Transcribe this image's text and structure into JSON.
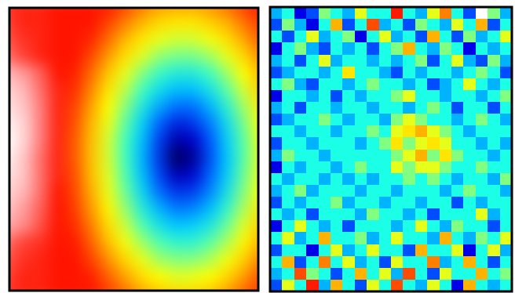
{
  "chart_data": [
    {
      "type": "heatmap",
      "tick_labels": false,
      "zlim": [
        0,
        1
      ],
      "cells": [
        [
          0.86,
          0.85,
          0.85,
          0.84,
          0.84,
          0.84,
          0.83,
          0.77,
          0.71,
          0.67,
          0.66,
          0.66,
          0.68,
          0.72,
          0.78,
          0.84
        ],
        [
          0.87,
          0.85,
          0.85,
          0.84,
          0.84,
          0.84,
          0.77,
          0.7,
          0.64,
          0.6,
          0.58,
          0.58,
          0.61,
          0.65,
          0.71,
          0.79
        ],
        [
          0.88,
          0.86,
          0.85,
          0.84,
          0.84,
          0.81,
          0.72,
          0.64,
          0.58,
          0.53,
          0.51,
          0.51,
          0.54,
          0.59,
          0.66,
          0.74
        ],
        [
          0.9,
          0.87,
          0.85,
          0.84,
          0.84,
          0.76,
          0.67,
          0.59,
          0.52,
          0.46,
          0.44,
          0.44,
          0.47,
          0.53,
          0.6,
          0.69
        ],
        [
          0.95,
          0.93,
          0.89,
          0.84,
          0.82,
          0.72,
          0.62,
          0.53,
          0.45,
          0.39,
          0.36,
          0.36,
          0.4,
          0.47,
          0.55,
          0.64
        ],
        [
          0.97,
          0.95,
          0.9,
          0.85,
          0.8,
          0.69,
          0.58,
          0.49,
          0.4,
          0.33,
          0.29,
          0.29,
          0.34,
          0.42,
          0.51,
          0.61
        ],
        [
          0.98,
          0.96,
          0.91,
          0.85,
          0.77,
          0.66,
          0.55,
          0.45,
          0.35,
          0.27,
          0.22,
          0.22,
          0.28,
          0.37,
          0.47,
          0.57
        ],
        [
          0.99,
          0.97,
          0.91,
          0.85,
          0.75,
          0.64,
          0.53,
          0.42,
          0.31,
          0.21,
          0.14,
          0.16,
          0.23,
          0.33,
          0.44,
          0.55
        ],
        [
          1.0,
          0.97,
          0.91,
          0.85,
          0.74,
          0.63,
          0.51,
          0.4,
          0.29,
          0.17,
          0.08,
          0.1,
          0.2,
          0.31,
          0.42,
          0.54
        ],
        [
          0.99,
          0.96,
          0.9,
          0.85,
          0.74,
          0.63,
          0.51,
          0.4,
          0.28,
          0.16,
          0.04,
          0.07,
          0.19,
          0.3,
          0.42,
          0.53
        ],
        [
          0.98,
          0.96,
          0.9,
          0.85,
          0.75,
          0.63,
          0.52,
          0.41,
          0.29,
          0.18,
          0.09,
          0.11,
          0.21,
          0.31,
          0.43,
          0.54
        ],
        [
          0.97,
          0.95,
          0.9,
          0.84,
          0.76,
          0.65,
          0.53,
          0.43,
          0.32,
          0.22,
          0.16,
          0.17,
          0.24,
          0.34,
          0.45,
          0.55
        ],
        [
          0.96,
          0.93,
          0.89,
          0.84,
          0.78,
          0.67,
          0.56,
          0.46,
          0.36,
          0.28,
          0.23,
          0.24,
          0.29,
          0.38,
          0.48,
          0.58
        ],
        [
          0.94,
          0.92,
          0.88,
          0.84,
          0.8,
          0.7,
          0.59,
          0.5,
          0.41,
          0.34,
          0.3,
          0.31,
          0.35,
          0.43,
          0.52,
          0.61
        ],
        [
          0.9,
          0.87,
          0.86,
          0.84,
          0.83,
          0.73,
          0.63,
          0.54,
          0.47,
          0.41,
          0.38,
          0.38,
          0.42,
          0.48,
          0.56,
          0.65
        ],
        [
          0.88,
          0.86,
          0.85,
          0.84,
          0.84,
          0.77,
          0.68,
          0.6,
          0.53,
          0.47,
          0.45,
          0.45,
          0.48,
          0.54,
          0.61,
          0.7
        ],
        [
          0.87,
          0.85,
          0.85,
          0.84,
          0.84,
          0.82,
          0.73,
          0.66,
          0.59,
          0.55,
          0.52,
          0.53,
          0.55,
          0.6,
          0.67,
          0.75
        ],
        [
          0.86,
          0.85,
          0.85,
          0.84,
          0.84,
          0.84,
          0.78,
          0.72,
          0.66,
          0.62,
          0.6,
          0.6,
          0.62,
          0.67,
          0.73,
          0.8
        ]
      ]
    },
    {
      "type": "heatmap",
      "tick_labels": false,
      "zlim": [
        0,
        1
      ],
      "cells": [
        [
          0.3,
          0.4,
          0.1,
          0.2,
          0.5,
          0.4,
          0.3,
          0.6,
          0.4,
          0.4,
          0.85,
          0.4,
          0.3,
          0.6,
          0.75,
          0.4,
          0.2,
          1.0,
          0.5,
          0.3
        ],
        [
          0.2,
          0.5,
          0.3,
          0.1,
          0.4,
          0.7,
          0.2,
          0.4,
          0.8,
          0.3,
          0.4,
          0.2,
          0.5,
          0.4,
          0.3,
          0.6,
          0.4,
          0.7,
          0.2,
          0.4
        ],
        [
          0.4,
          0.2,
          0.4,
          0.6,
          0.3,
          0.4,
          0.5,
          0.1,
          0.4,
          0.6,
          0.3,
          0.4,
          0.2,
          0.7,
          0.4,
          0.2,
          0.5,
          0.3,
          0.4,
          0.6
        ],
        [
          0.1,
          0.4,
          0.5,
          0.3,
          0.2,
          0.4,
          0.3,
          0.4,
          0.2,
          0.4,
          0.5,
          0.7,
          0.4,
          0.3,
          0.5,
          0.4,
          0.1,
          0.4,
          0.3,
          0.4
        ],
        [
          0.3,
          0.4,
          0.2,
          0.4,
          0.6,
          0.3,
          0.4,
          0.4,
          0.3,
          0.4,
          0.3,
          0.4,
          0.5,
          0.2,
          0.4,
          0.6,
          0.3,
          0.2,
          0.5,
          0.3
        ],
        [
          0.2,
          0.3,
          0.4,
          0.4,
          0.3,
          0.4,
          0.65,
          0.4,
          0.4,
          0.3,
          0.2,
          0.4,
          0.3,
          0.4,
          0.4,
          0.3,
          0.4,
          0.5,
          0.4,
          0.2
        ],
        [
          0.4,
          0.5,
          0.3,
          0.2,
          0.4,
          0.4,
          0.3,
          0.4,
          0.5,
          0.4,
          0.4,
          0.3,
          0.4,
          0.2,
          0.3,
          0.4,
          0.6,
          0.4,
          0.3,
          0.4
        ],
        [
          0.1,
          0.4,
          0.4,
          0.3,
          0.4,
          0.2,
          0.4,
          0.3,
          0.4,
          0.4,
          0.5,
          0.6,
          0.4,
          0.4,
          0.3,
          0.4,
          0.4,
          0.3,
          0.4,
          0.5
        ],
        [
          0.3,
          0.4,
          0.2,
          0.4,
          0.4,
          0.3,
          0.4,
          0.4,
          0.3,
          0.4,
          0.4,
          0.3,
          0.4,
          0.5,
          0.4,
          0.2,
          0.4,
          0.4,
          0.2,
          0.4
        ],
        [
          0.2,
          0.3,
          0.4,
          0.4,
          0.5,
          0.4,
          0.3,
          0.4,
          0.4,
          0.3,
          0.5,
          0.6,
          0.5,
          0.4,
          0.4,
          0.3,
          0.4,
          0.5,
          0.4,
          0.3
        ],
        [
          0.4,
          0.4,
          0.3,
          0.4,
          0.4,
          0.3,
          0.4,
          0.4,
          0.5,
          0.4,
          0.6,
          0.65,
          0.7,
          0.6,
          0.5,
          0.4,
          0.3,
          0.4,
          0.4,
          0.4
        ],
        [
          0.2,
          0.4,
          0.4,
          0.3,
          0.4,
          0.4,
          0.4,
          0.3,
          0.4,
          0.5,
          0.65,
          0.5,
          0.6,
          0.65,
          0.6,
          0.4,
          0.4,
          0.3,
          0.4,
          0.3
        ],
        [
          0.3,
          0.5,
          0.4,
          0.4,
          0.3,
          0.4,
          0.4,
          0.4,
          0.4,
          0.4,
          0.5,
          0.6,
          0.7,
          0.5,
          0.65,
          0.5,
          0.4,
          0.4,
          0.3,
          0.4
        ],
        [
          0.1,
          0.4,
          0.3,
          0.4,
          0.4,
          0.3,
          0.4,
          0.5,
          0.4,
          0.4,
          0.6,
          0.5,
          0.6,
          0.6,
          0.5,
          0.4,
          0.4,
          0.5,
          0.4,
          0.4
        ],
        [
          0.4,
          0.3,
          0.4,
          0.4,
          0.3,
          0.4,
          0.3,
          0.4,
          0.3,
          0.4,
          0.4,
          0.5,
          0.4,
          0.5,
          0.4,
          0.3,
          0.4,
          0.4,
          0.3,
          0.5
        ],
        [
          0.3,
          0.4,
          0.5,
          0.3,
          0.4,
          0.4,
          0.4,
          0.3,
          0.4,
          0.4,
          0.3,
          0.4,
          0.4,
          0.4,
          0.3,
          0.4,
          0.5,
          0.4,
          0.4,
          0.3
        ],
        [
          0.2,
          0.4,
          0.3,
          0.4,
          0.4,
          0.5,
          0.3,
          0.4,
          0.4,
          0.3,
          0.4,
          0.4,
          0.3,
          0.4,
          0.4,
          0.2,
          0.4,
          0.3,
          0.4,
          0.4
        ],
        [
          0.4,
          0.3,
          0.4,
          0.2,
          0.4,
          0.4,
          0.4,
          0.3,
          0.5,
          0.4,
          0.4,
          0.3,
          0.4,
          0.2,
          0.4,
          0.4,
          0.4,
          0.6,
          0.3,
          0.4
        ],
        [
          0.1,
          0.4,
          0.6,
          0.4,
          0.3,
          0.4,
          0.2,
          0.4,
          0.4,
          0.4,
          0.3,
          0.4,
          0.6,
          0.4,
          0.3,
          0.5,
          0.4,
          0.4,
          0.2,
          0.4
        ],
        [
          0.4,
          0.6,
          0.3,
          0.4,
          0.7,
          0.4,
          0.4,
          0.5,
          0.3,
          0.4,
          0.6,
          0.4,
          0.4,
          0.3,
          0.7,
          0.4,
          0.3,
          0.5,
          0.4,
          0.6
        ],
        [
          0.2,
          0.4,
          0.4,
          0.1,
          0.4,
          0.6,
          0.3,
          0.4,
          0.6,
          0.4,
          0.4,
          0.2,
          0.7,
          0.4,
          0.4,
          0.6,
          0.1,
          0.4,
          0.6,
          0.3
        ],
        [
          0.4,
          0.7,
          0.2,
          0.4,
          0.75,
          0.4,
          0.6,
          0.3,
          0.4,
          0.2,
          0.6,
          0.4,
          0.4,
          0.75,
          0.3,
          0.4,
          0.7,
          0.4,
          0.2,
          0.4
        ],
        [
          0.3,
          0.4,
          0.8,
          0.5,
          0.4,
          0.2,
          0.4,
          0.7,
          0.4,
          0.6,
          0.3,
          0.8,
          0.4,
          0.2,
          0.6,
          0.4,
          0.4,
          0.7,
          0.4,
          0.5
        ],
        [
          0.2,
          0.6,
          0.4,
          0.85,
          0.3,
          0.7,
          0.4,
          0.2,
          0.6,
          0.4,
          0.8,
          0.4,
          0.3,
          0.6,
          0.4,
          0.1,
          0.7,
          0.4,
          0.3,
          0.4
        ]
      ]
    }
  ]
}
